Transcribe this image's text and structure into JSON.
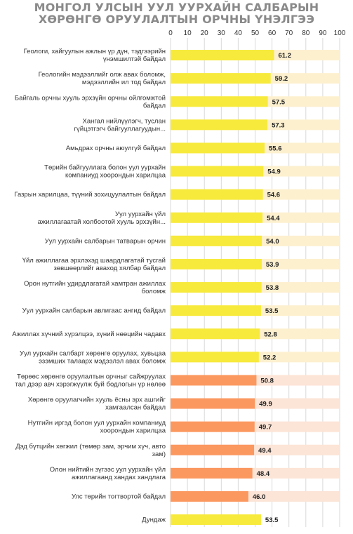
{
  "title_lines": [
    "МОНГОЛ УЛСЫН УУЛ УУРХАЙН САЛБАРЫН",
    "ХӨРӨНГӨ ОРУУЛАЛТЫН ОРЧНЫ ҮНЭЛГЭЭ"
  ],
  "colors": {
    "high": "#f7ea3c",
    "low": "#fb9860",
    "high_bg": "#fdf0cf",
    "low_bg": "#fce4d6",
    "average": "#f7ea3c",
    "grid": "#d9d9d9"
  },
  "chart_data": {
    "type": "bar",
    "orientation": "horizontal",
    "title": "МОНГОЛ УЛСЫН УУЛ УУРХАЙН САЛБАРЫН ХӨРӨНГӨ ОРУУЛАЛТЫН ОРЧНЫ ҮНЭЛГЭЭ",
    "xlim": [
      0,
      100
    ],
    "xticks": [
      0,
      10,
      20,
      30,
      40,
      50,
      60,
      70,
      80,
      90,
      100
    ],
    "xaxis_position": "top",
    "grid": true,
    "categories": [
      [
        "Геологи, хайгуулын ажлын үр дүн, тэдгээрийн",
        "үнэмшилтэй байдал"
      ],
      [
        "Геологийн мэдээллийг олж авах боломж,",
        "мэдээллийн ил тод байдал"
      ],
      [
        "Байгаль орчны хууль эрхзүйн орчны ойлгомжтой",
        "байдал"
      ],
      [
        "Хангал нийлүүлэгч, туслан",
        "гүйцэтгэгч байгууллагуудын..."
      ],
      [
        "Амьдрах орчны аюулгүй байдал"
      ],
      [
        "Төрийн байгууллага болон уул уурхайн",
        "компаниуд хоорондын харилцаа"
      ],
      [
        "Газрын харилцаа, түүний зохицуулалтын байдал"
      ],
      [
        "Уул уурхайн үйл",
        "ажиллагаатай холбоотой хууль эрхзүйн..."
      ],
      [
        "Уул уурхайн салбарын татварын орчин"
      ],
      [
        "Үйл ажиллагаа эрхлэхэд шаардлагатай тусгай",
        "зөвшөөрлийг аваход хялбар байдал"
      ],
      [
        "Орон нутгийн удирдлагатай хамтран ажиллах",
        "боломж"
      ],
      [
        "Уул уурхайн салбарын авлигаас ангид байдал"
      ],
      [
        "Ажиллах хүчний хүрэлцээ, хүний нөөцийн чадавх"
      ],
      [
        "Уул уурхайн салбарт хөрөнгө оруулах, хувьцаа",
        "эзэмших талаарх мэдээлэл авах боломж"
      ],
      [
        "Төрөөс хөрөнгө оруулалтын орчныг сайжруулах",
        "тал дээр авч хэрэгжүүлж буй бодлогын үр нөлөө"
      ],
      [
        "Хөрөнгө оруулагчийн хууль ёсны эрх ашгийг",
        "хамгаалсан байдал"
      ],
      [
        "Нутгийн иргэд болон уул уурхайн компаниуд",
        "хоорондын харилцаа"
      ],
      [
        "Дэд бүтцийн хөгжил (төмөр зам, эрчим хүч, авто",
        "зам)"
      ],
      [
        "Олон нийтийн зүгээс уул уурхайн үйл",
        "ажиллагаанд хандах хандлага"
      ],
      [
        "Улс төрийн тогтвортой байдал"
      ],
      [
        "Дундаж"
      ]
    ],
    "values": [
      61.2,
      59.2,
      57.5,
      57.3,
      55.6,
      54.9,
      54.6,
      54.4,
      54.0,
      53.9,
      53.8,
      53.5,
      52.8,
      52.2,
      50.8,
      49.9,
      49.7,
      49.4,
      48.4,
      46.0,
      53.5
    ],
    "value_labels": [
      "61.2",
      "59.2",
      "57.5",
      "57.3",
      "55.6",
      "54.9",
      "54.6",
      "54.4",
      "54.0",
      "53.9",
      "53.8",
      "53.5",
      "52.8",
      "52.2",
      "50.8",
      "49.9",
      "49.7",
      "49.4",
      "48.4",
      "46.0",
      "53.5"
    ],
    "bar_colors": [
      "high",
      "high",
      "high",
      "high",
      "high",
      "high",
      "high",
      "high",
      "high",
      "high",
      "high",
      "high",
      "high",
      "high",
      "low",
      "low",
      "low",
      "low",
      "low",
      "low",
      "average"
    ]
  }
}
